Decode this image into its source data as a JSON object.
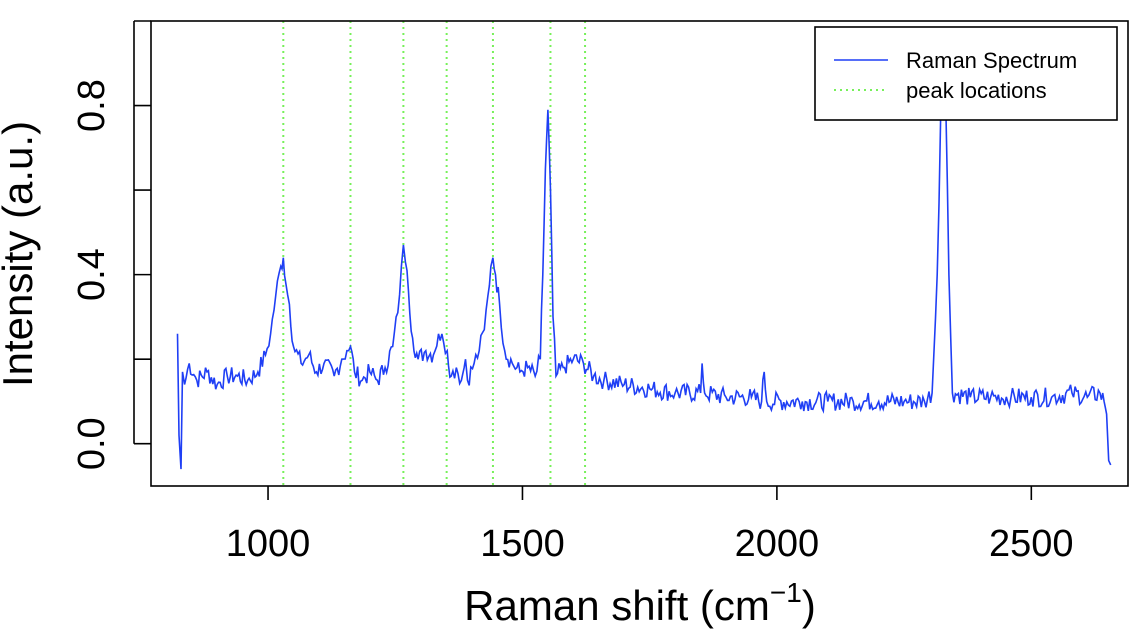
{
  "chart_data": {
    "type": "line",
    "xlabel": "Raman shift (cm",
    "xlabel_sup": "−1",
    "xlabel_close": ")",
    "ylabel": "Intensity (a.u.)",
    "xlim": [
      770,
      2690
    ],
    "ylim": [
      -0.1,
      1.0
    ],
    "xticks": [
      1000,
      1500,
      2000,
      2500
    ],
    "xtick_labels": [
      "1000",
      "1500",
      "2000",
      "2500"
    ],
    "yticks": [
      0.0,
      0.2,
      0.4,
      0.6,
      0.8,
      1.0
    ],
    "ytick_labels": [
      "0.0",
      "",
      "0.4",
      "",
      "0.8",
      ""
    ],
    "grid": false,
    "legend_position": "top-right",
    "series": [
      {
        "name": "Raman Spectrum",
        "style": "solid",
        "color": "#1f3ff5",
        "points": [
          [
            822,
            0.26
          ],
          [
            825,
            0.02
          ],
          [
            829,
            -0.06
          ],
          [
            832,
            0.17
          ],
          [
            836,
            0.14
          ],
          [
            845,
            0.19
          ],
          [
            860,
            0.15
          ],
          [
            880,
            0.17
          ],
          [
            900,
            0.14
          ],
          [
            920,
            0.16
          ],
          [
            940,
            0.16
          ],
          [
            960,
            0.15
          ],
          [
            980,
            0.17
          ],
          [
            995,
            0.21
          ],
          [
            1005,
            0.26
          ],
          [
            1015,
            0.35
          ],
          [
            1025,
            0.42
          ],
          [
            1030,
            0.44
          ],
          [
            1035,
            0.38
          ],
          [
            1042,
            0.33
          ],
          [
            1050,
            0.23
          ],
          [
            1065,
            0.19
          ],
          [
            1080,
            0.21
          ],
          [
            1095,
            0.17
          ],
          [
            1110,
            0.19
          ],
          [
            1130,
            0.16
          ],
          [
            1145,
            0.2
          ],
          [
            1155,
            0.22
          ],
          [
            1162,
            0.23
          ],
          [
            1170,
            0.17
          ],
          [
            1185,
            0.15
          ],
          [
            1200,
            0.17
          ],
          [
            1215,
            0.15
          ],
          [
            1230,
            0.18
          ],
          [
            1245,
            0.23
          ],
          [
            1255,
            0.31
          ],
          [
            1262,
            0.42
          ],
          [
            1266,
            0.47
          ],
          [
            1270,
            0.43
          ],
          [
            1276,
            0.36
          ],
          [
            1284,
            0.25
          ],
          [
            1295,
            0.2
          ],
          [
            1310,
            0.22
          ],
          [
            1325,
            0.21
          ],
          [
            1335,
            0.26
          ],
          [
            1345,
            0.24
          ],
          [
            1352,
            0.22
          ],
          [
            1360,
            0.16
          ],
          [
            1370,
            0.18
          ],
          [
            1380,
            0.15
          ],
          [
            1388,
            0.2
          ],
          [
            1392,
            0.15
          ],
          [
            1405,
            0.19
          ],
          [
            1415,
            0.22
          ],
          [
            1425,
            0.27
          ],
          [
            1432,
            0.35
          ],
          [
            1438,
            0.42
          ],
          [
            1442,
            0.44
          ],
          [
            1447,
            0.4
          ],
          [
            1455,
            0.33
          ],
          [
            1465,
            0.22
          ],
          [
            1480,
            0.19
          ],
          [
            1495,
            0.17
          ],
          [
            1510,
            0.18
          ],
          [
            1525,
            0.16
          ],
          [
            1535,
            0.2
          ],
          [
            1540,
            0.4
          ],
          [
            1545,
            0.65
          ],
          [
            1550,
            0.79
          ],
          [
            1555,
            0.6
          ],
          [
            1560,
            0.3
          ],
          [
            1566,
            0.16
          ],
          [
            1580,
            0.18
          ],
          [
            1600,
            0.2
          ],
          [
            1620,
            0.19
          ],
          [
            1640,
            0.16
          ],
          [
            1660,
            0.15
          ],
          [
            1700,
            0.14
          ],
          [
            1750,
            0.13
          ],
          [
            1800,
            0.12
          ],
          [
            1850,
            0.12
          ],
          [
            1853,
            0.19
          ],
          [
            1858,
            0.12
          ],
          [
            1900,
            0.11
          ],
          [
            1950,
            0.11
          ],
          [
            1970,
            0.1
          ],
          [
            1975,
            0.17
          ],
          [
            1980,
            0.1
          ],
          [
            2050,
            0.1
          ],
          [
            2100,
            0.1
          ],
          [
            2150,
            0.1
          ],
          [
            2200,
            0.1
          ],
          [
            2250,
            0.1
          ],
          [
            2290,
            0.1
          ],
          [
            2305,
            0.12
          ],
          [
            2315,
            0.4
          ],
          [
            2322,
            0.78
          ],
          [
            2326,
            0.84
          ],
          [
            2332,
            0.8
          ],
          [
            2338,
            0.4
          ],
          [
            2345,
            0.12
          ],
          [
            2380,
            0.11
          ],
          [
            2420,
            0.11
          ],
          [
            2460,
            0.11
          ],
          [
            2500,
            0.11
          ],
          [
            2540,
            0.11
          ],
          [
            2580,
            0.12
          ],
          [
            2610,
            0.11
          ],
          [
            2635,
            0.12
          ],
          [
            2643,
            0.1
          ],
          [
            2648,
            0.07
          ],
          [
            2652,
            -0.04
          ],
          [
            2656,
            -0.05
          ]
        ]
      },
      {
        "name": "peak locations",
        "style": "dotted",
        "color": "#77f05a",
        "vlines": [
          1030,
          1162,
          1266,
          1351,
          1442,
          1555,
          1623
        ]
      }
    ]
  }
}
